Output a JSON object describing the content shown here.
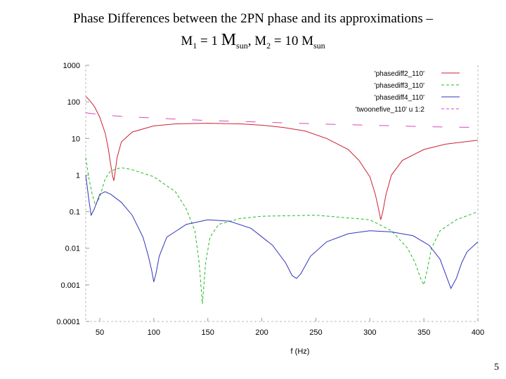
{
  "title": {
    "line1": "Phase Differences between the 2PN phase and its approximations –",
    "m1_symbol": "M",
    "m1_sub": "1",
    "m1_eq": " = 1 ",
    "msun_symbol": "M",
    "msun_sub": "sun",
    "sep": ", ",
    "m2_symbol": "M",
    "m2_sub": "2",
    "m2_eq": " = 10 ",
    "msun2_symbol": "M",
    "msun2_sub": "sun"
  },
  "slide_number": "5",
  "chart_data": {
    "type": "line",
    "xlabel": "f (Hz)",
    "ylabel": "",
    "xlim": [
      37,
      400
    ],
    "ylim": [
      0.0001,
      1000
    ],
    "yscale": "log",
    "xticks": [
      50,
      100,
      150,
      200,
      250,
      300,
      350,
      400
    ],
    "xtick_labels": [
      "50",
      "100",
      "150",
      "200",
      "250",
      "300",
      "350",
      "400"
    ],
    "yticks": [
      0.0001,
      0.001,
      0.01,
      0.1,
      1,
      10,
      100,
      1000
    ],
    "ytick_labels": [
      "0.0001",
      "0.001",
      "0.01",
      "0.1",
      "1",
      "10",
      "100",
      "1000"
    ],
    "legend_position": "top-right",
    "grid": false,
    "series": [
      {
        "name": "'phasediff2_110'",
        "color": "#cc2233",
        "style": "solid",
        "x": [
          37,
          40,
          45,
          50,
          55,
          58,
          60,
          62,
          63,
          64,
          66,
          70,
          80,
          100,
          120,
          150,
          180,
          200,
          220,
          240,
          260,
          280,
          290,
          300,
          305,
          308,
          310,
          312,
          315,
          320,
          330,
          350,
          370,
          400
        ],
        "y": [
          140,
          115,
          75,
          38,
          14,
          5,
          2,
          0.9,
          0.7,
          1.1,
          3,
          8,
          15,
          22,
          25,
          26,
          25,
          23,
          20,
          16,
          10,
          5,
          2.5,
          0.9,
          0.3,
          0.12,
          0.06,
          0.1,
          0.3,
          1,
          2.5,
          5,
          7,
          9
        ]
      },
      {
        "name": "'phasediff3_110'",
        "color": "#22bb22",
        "style": "dashed",
        "x": [
          37,
          40,
          43,
          46,
          50,
          55,
          60,
          70,
          80,
          100,
          120,
          130,
          138,
          142,
          145,
          148,
          152,
          160,
          180,
          200,
          250,
          300,
          320,
          335,
          342,
          347,
          350,
          353,
          357,
          365,
          380,
          400
        ],
        "y": [
          3,
          0.8,
          0.3,
          0.15,
          0.25,
          0.8,
          1.3,
          1.6,
          1.4,
          0.9,
          0.35,
          0.12,
          0.03,
          0.004,
          0.0003,
          0.004,
          0.02,
          0.045,
          0.065,
          0.075,
          0.08,
          0.06,
          0.03,
          0.01,
          0.004,
          0.0015,
          0.001,
          0.0025,
          0.01,
          0.03,
          0.06,
          0.1
        ]
      },
      {
        "name": "'phasediff4_110'",
        "color": "#3333bb",
        "style": "solid",
        "x": [
          37,
          40,
          42,
          45,
          50,
          55,
          60,
          70,
          80,
          90,
          95,
          98,
          100,
          102,
          105,
          112,
          130,
          150,
          170,
          190,
          210,
          222,
          228,
          232,
          236,
          245,
          260,
          280,
          300,
          320,
          340,
          355,
          365,
          370,
          375,
          380,
          385,
          390,
          400
        ],
        "y": [
          1,
          0.2,
          0.08,
          0.12,
          0.3,
          0.35,
          0.3,
          0.18,
          0.08,
          0.02,
          0.006,
          0.0025,
          0.0012,
          0.002,
          0.006,
          0.02,
          0.045,
          0.06,
          0.055,
          0.035,
          0.012,
          0.004,
          0.0018,
          0.0015,
          0.002,
          0.006,
          0.015,
          0.025,
          0.03,
          0.028,
          0.022,
          0.012,
          0.005,
          0.002,
          0.0008,
          0.0015,
          0.004,
          0.008,
          0.015
        ]
      },
      {
        "name": "'twoonefive_110' u 1:2",
        "color": "#dd44bb",
        "style": "dashed",
        "x": [
          37,
          60,
          100,
          150,
          200,
          250,
          300,
          350,
          400
        ],
        "y": [
          50,
          42,
          36,
          31,
          28,
          25,
          23,
          21,
          20
        ]
      }
    ]
  }
}
